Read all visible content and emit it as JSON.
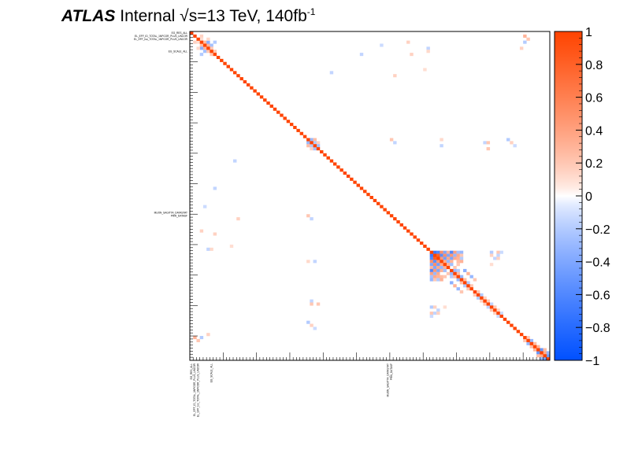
{
  "header": {
    "experiment": "ATLAS",
    "status": "Internal",
    "energy_label": "√s=13 TeV, 140fb",
    "lumi_exponent": "-1"
  },
  "chart_data": {
    "type": "heatmap",
    "title": "",
    "n_params": 108,
    "colorbar": {
      "range": [
        -1,
        1
      ],
      "tick_values": [
        1,
        0.8,
        0.6,
        0.4,
        0.2,
        0,
        -0.2,
        -0.4,
        -0.6,
        -0.8,
        -1
      ],
      "tick_labels": [
        "1",
        "0.8",
        "0.6",
        "0.4",
        "0.2",
        "0",
        "−0.2",
        "−0.4",
        "−0.6",
        "−0.8",
        "−1"
      ],
      "colors": {
        "negative": "#0050ff",
        "zero": "#ffffff",
        "positive": "#ff4400"
      }
    },
    "visible_parameter_labels": [
      "EG_RES_ALL",
      "EL_EFF_ID_TOTAL_1NPCOR_PLUS_UNCOR",
      "EL_EFF_Iso_TOTAL_1NPCOR_PLUS_UNCOR",
      "EG_SCALE_ALL",
      "MUON_SAGITTA_DATASTAT",
      "PRW_DATASF"
    ],
    "offdiagonal_entries": [
      [
        1,
        3,
        0.15
      ],
      [
        2,
        3,
        0.1
      ],
      [
        3,
        4,
        0.25
      ],
      [
        4,
        5,
        0.3
      ],
      [
        3,
        5,
        -0.35
      ],
      [
        4,
        6,
        -0.25
      ],
      [
        5,
        6,
        0.2
      ],
      [
        3,
        7,
        -0.2
      ],
      [
        6,
        7,
        0.2
      ],
      [
        2,
        5,
        0.12
      ],
      [
        1,
        100,
        0.3
      ],
      [
        2,
        101,
        0.2
      ],
      [
        3,
        100,
        -0.2
      ],
      [
        5,
        71,
        -0.15
      ],
      [
        6,
        71,
        0.12
      ],
      [
        5,
        99,
        0.15
      ],
      [
        3,
        65,
        0.15
      ],
      [
        4,
        57,
        -0.12
      ],
      [
        7,
        51,
        -0.15
      ],
      [
        7,
        66,
        0.15
      ],
      [
        12,
        70,
        0.1
      ],
      [
        13,
        42,
        -0.15
      ],
      [
        14,
        61,
        0.15
      ],
      [
        35,
        36,
        -0.3
      ],
      [
        35,
        37,
        0.25
      ],
      [
        36,
        37,
        -0.2
      ],
      [
        36,
        38,
        0.15
      ],
      [
        37,
        38,
        -0.25
      ],
      [
        35,
        60,
        0.2
      ],
      [
        36,
        61,
        -0.15
      ],
      [
        35,
        75,
        0.12
      ],
      [
        36,
        88,
        -0.15
      ],
      [
        36,
        89,
        0.2
      ],
      [
        37,
        75,
        -0.15
      ],
      [
        38,
        89,
        0.2
      ],
      [
        35,
        95,
        -0.2
      ],
      [
        36,
        96,
        0.15
      ],
      [
        37,
        97,
        -0.12
      ],
      [
        72,
        73,
        -0.7
      ],
      [
        72,
        74,
        -0.6
      ],
      [
        73,
        74,
        0.8
      ],
      [
        72,
        75,
        0.5
      ],
      [
        73,
        75,
        -0.55
      ],
      [
        74,
        75,
        0.45
      ],
      [
        72,
        76,
        -0.4
      ],
      [
        73,
        76,
        0.5
      ],
      [
        74,
        76,
        -0.45
      ],
      [
        75,
        76,
        0.35
      ],
      [
        72,
        77,
        0.3
      ],
      [
        73,
        77,
        -0.4
      ],
      [
        74,
        77,
        0.35
      ],
      [
        75,
        77,
        -0.3
      ],
      [
        76,
        77,
        0.3
      ],
      [
        72,
        78,
        -0.6
      ],
      [
        73,
        78,
        0.45
      ],
      [
        74,
        78,
        -0.4
      ],
      [
        75,
        78,
        0.3
      ],
      [
        76,
        78,
        -0.25
      ],
      [
        72,
        79,
        0.4
      ],
      [
        73,
        79,
        -0.3
      ],
      [
        74,
        79,
        0.35
      ],
      [
        77,
        79,
        0.2
      ],
      [
        78,
        79,
        -0.3
      ],
      [
        72,
        80,
        -0.25
      ],
      [
        73,
        80,
        0.35
      ],
      [
        74,
        80,
        0.3
      ],
      [
        75,
        80,
        0.25
      ],
      [
        76,
        80,
        0.2
      ],
      [
        78,
        80,
        -0.2
      ],
      [
        79,
        80,
        0.25
      ],
      [
        72,
        81,
        -0.3
      ],
      [
        73,
        81,
        0.2
      ],
      [
        74,
        81,
        -0.2
      ],
      [
        75,
        81,
        0.3
      ],
      [
        80,
        81,
        -0.3
      ],
      [
        81,
        82,
        0.25
      ],
      [
        82,
        83,
        -0.2
      ],
      [
        83,
        84,
        0.2
      ],
      [
        78,
        82,
        -0.35
      ],
      [
        79,
        83,
        0.3
      ],
      [
        80,
        84,
        -0.3
      ],
      [
        81,
        85,
        0.2
      ],
      [
        72,
        90,
        -0.2
      ],
      [
        73,
        90,
        0.15
      ],
      [
        74,
        91,
        -0.15
      ],
      [
        72,
        92,
        0.2
      ],
      [
        73,
        92,
        -0.15
      ],
      [
        74,
        92,
        0.15
      ],
      [
        72,
        93,
        -0.12
      ],
      [
        85,
        86,
        0.2
      ],
      [
        86,
        87,
        -0.2
      ],
      [
        87,
        88,
        0.15
      ],
      [
        76,
        90,
        0.1
      ],
      [
        88,
        89,
        0.2
      ],
      [
        89,
        90,
        -0.15
      ],
      [
        90,
        91,
        0.2
      ],
      [
        91,
        92,
        0.15
      ],
      [
        92,
        93,
        -0.12
      ],
      [
        100,
        101,
        0.2
      ],
      [
        101,
        102,
        -0.3
      ],
      [
        102,
        103,
        0.25
      ],
      [
        103,
        104,
        0.3
      ],
      [
        104,
        105,
        -0.5
      ],
      [
        105,
        106,
        0.35
      ],
      [
        106,
        107,
        -0.45
      ],
      [
        104,
        106,
        0.25
      ],
      [
        105,
        107,
        -0.3
      ]
    ]
  }
}
